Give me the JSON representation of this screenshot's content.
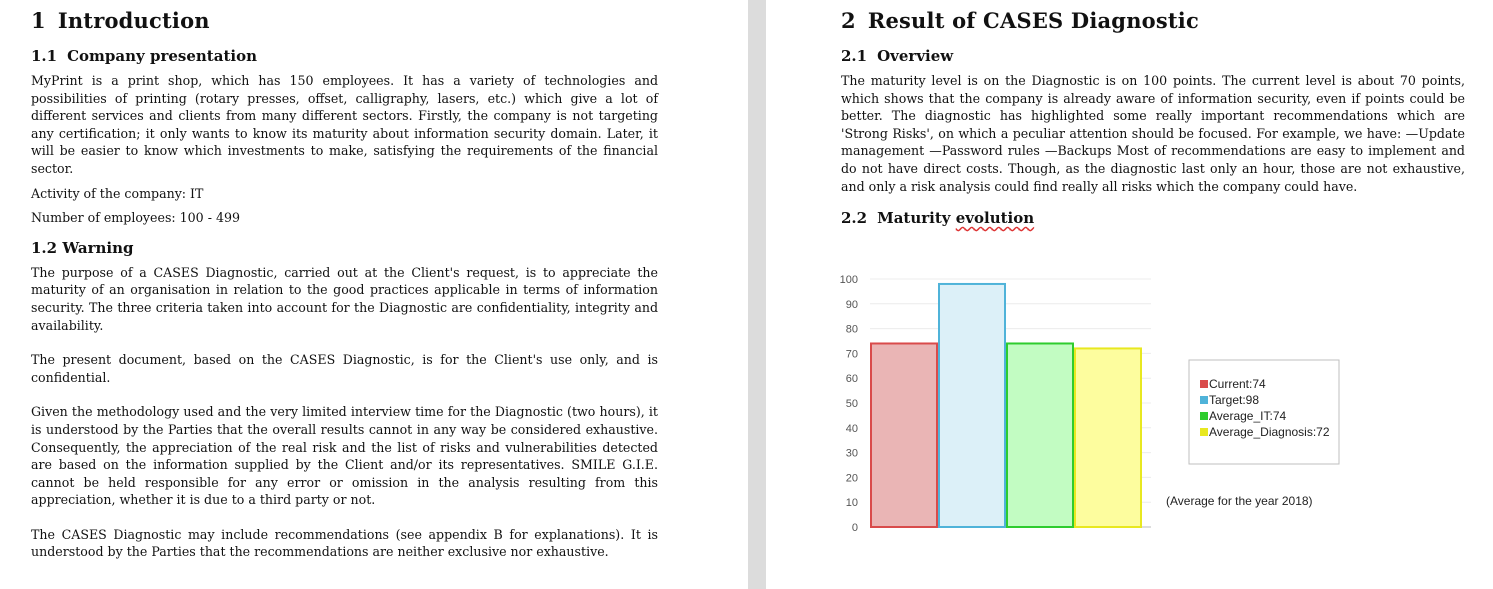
{
  "left": {
    "title_num": "1",
    "title": "Introduction",
    "s1_num": "1.1",
    "s1_title": "Company presentation",
    "s1_p1": "MyPrint is a print shop, which has 150 employees. It has a variety of technologies and possibilities of printing (rotary presses, offset, calligraphy, lasers, etc.) which give a lot of different services and clients from many different sectors. Firstly, the company is not targeting any certification; it only wants to know its maturity about information security domain. Later, it will be easier to know which investments to make, satisfying the requirements of the financial sector.",
    "s1_p2": "Activity of the company: IT",
    "s1_p3": "Number of employees: 100 - 499",
    "s2_title": "1.2 Warning",
    "s2_p1": "The purpose of a CASES Diagnostic, carried out at the Client's request, is to appreciate the maturity of an organisation in relation to the good practices applicable in terms of information security. The three criteria taken into account for the Diagnostic are confidentiality, integrity and availability.",
    "s2_p2": "The present document, based on the CASES Diagnostic, is for the Client's use only, and is confidential.",
    "s2_p3": "Given the methodology used and the very limited interview time for the Diagnostic (two hours), it is understood by the Parties that the overall results cannot in any way be considered exhaustive. Consequently, the appreciation of the real risk and the list of risks and vulnerabilities detected are based on the information supplied by the Client and/or its representatives. SMILE G.I.E. cannot be held responsible for any error or omission in the analysis resulting from this appreciation, whether it is due to a third party or not.",
    "s2_p4": "The CASES Diagnostic may include recommendations (see appendix B for explanations). It is understood by the Parties that the recommendations are neither exclusive nor exhaustive."
  },
  "right": {
    "title_num": "2",
    "title": "Result of CASES Diagnostic",
    "s1_num": "2.1",
    "s1_title": "Overview",
    "s1_p1": "The maturity level is on the Diagnostic is on 100 points. The current level is about 70 points, which shows that the company is already aware of information security, even if points could be better.   The diagnostic has highlighted some really important recommendations which are 'Strong Risks', on which a peculiar attention should be focused. For example, we have: —Update management —Password rules —Backups  Most of recommendations are easy to implement and do not have direct costs.  Though, as the diagnostic last only an hour, those are not exhaustive, and only a risk analysis could find really all risks which the company could have.",
    "s2_num": "2.2",
    "s2_title_a": "Maturity ",
    "s2_title_b": "evolution"
  },
  "chart_data": {
    "type": "bar",
    "categories": [
      "Current",
      "Target",
      "Average_IT",
      "Average_Diagnosis"
    ],
    "values": [
      74,
      98,
      74,
      72
    ],
    "legend": [
      "Current:74",
      "Target:98",
      "Average_IT:74",
      "Average_Diagnosis:72"
    ],
    "colors": [
      "#d94b4b",
      "#4fb3d9",
      "#2ecc2e",
      "#e8e820"
    ],
    "fills": [
      "#eab5b5",
      "#dcf0f8",
      "#c2fcc2",
      "#fdfd9e"
    ],
    "annotation": "(Average for the year 2018)",
    "yticks": [
      0,
      10,
      20,
      30,
      40,
      50,
      60,
      70,
      80,
      90,
      100
    ],
    "ylim": [
      0,
      100
    ],
    "grid": true,
    "legend_position": "right"
  }
}
